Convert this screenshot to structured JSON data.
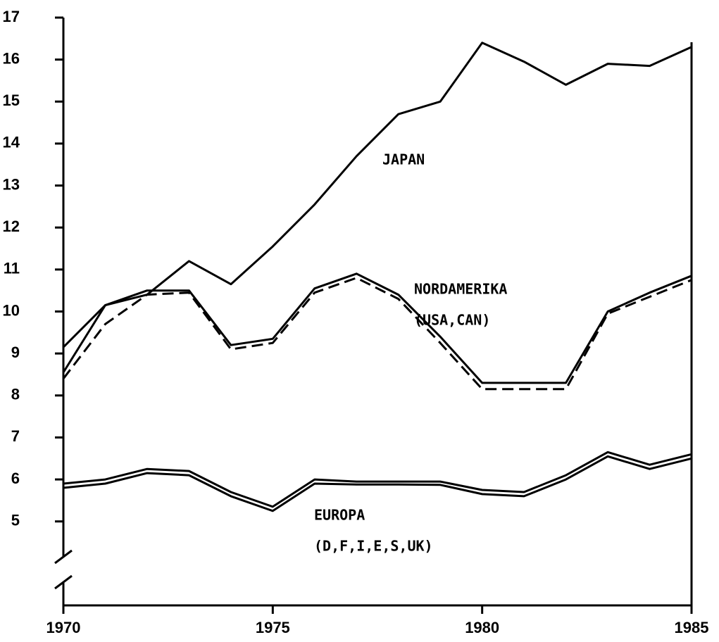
{
  "chart_data": {
    "type": "line",
    "x": [
      1970,
      1971,
      1972,
      1973,
      1974,
      1975,
      1976,
      1977,
      1978,
      1979,
      1980,
      1981,
      1982,
      1983,
      1984,
      1985
    ],
    "xlim": [
      1970,
      1985
    ],
    "xticks": [
      1970,
      1975,
      1980,
      1985
    ],
    "ylim": [
      3,
      17
    ],
    "yticks": [
      5,
      6,
      7,
      8,
      9,
      10,
      11,
      12,
      13,
      14,
      15,
      16,
      17
    ],
    "series": [
      {
        "color": "#000000",
        "style": "solid",
        "values": [
          9.15,
          10.15,
          10.4,
          11.2,
          10.65,
          11.55,
          12.55,
          13.7,
          14.7,
          15.0,
          16.4,
          15.95,
          15.4,
          15.9,
          15.85,
          16.3
        ]
      },
      {
        "color": "#000000",
        "style": "solid",
        "values": [
          8.55,
          10.15,
          10.5,
          10.5,
          9.2,
          9.35,
          10.55,
          10.9,
          10.4,
          9.4,
          8.3,
          8.3,
          8.3,
          10.0,
          10.45,
          10.85
        ]
      },
      {
        "color": "#000000",
        "style": "dashed",
        "values": [
          8.4,
          9.7,
          10.4,
          10.45,
          9.1,
          9.25,
          10.45,
          10.8,
          10.3,
          9.25,
          8.15,
          8.15,
          8.15,
          9.95,
          10.35,
          10.75
        ]
      },
      {
        "color": "#000000",
        "style": "solid",
        "values": [
          5.9,
          6.0,
          6.25,
          6.2,
          5.7,
          5.35,
          6.0,
          5.95,
          5.95,
          5.95,
          5.75,
          5.7,
          6.1,
          6.65,
          6.35,
          6.6
        ]
      },
      {
        "color": "#000000",
        "style": "solid",
        "values": [
          5.8,
          5.9,
          6.15,
          6.1,
          5.6,
          5.25,
          5.9,
          5.88,
          5.88,
          5.87,
          5.65,
          5.6,
          6.0,
          6.55,
          6.25,
          6.5
        ]
      }
    ],
    "annotations": [
      {
        "lines": [
          "JAPAN"
        ]
      },
      {
        "lines": [
          "NORDAMERIKA",
          "(USA,CAN)"
        ]
      },
      {
        "lines": [
          "EUROPA",
          "(D,F,I,E,S,UK)"
        ]
      }
    ]
  }
}
